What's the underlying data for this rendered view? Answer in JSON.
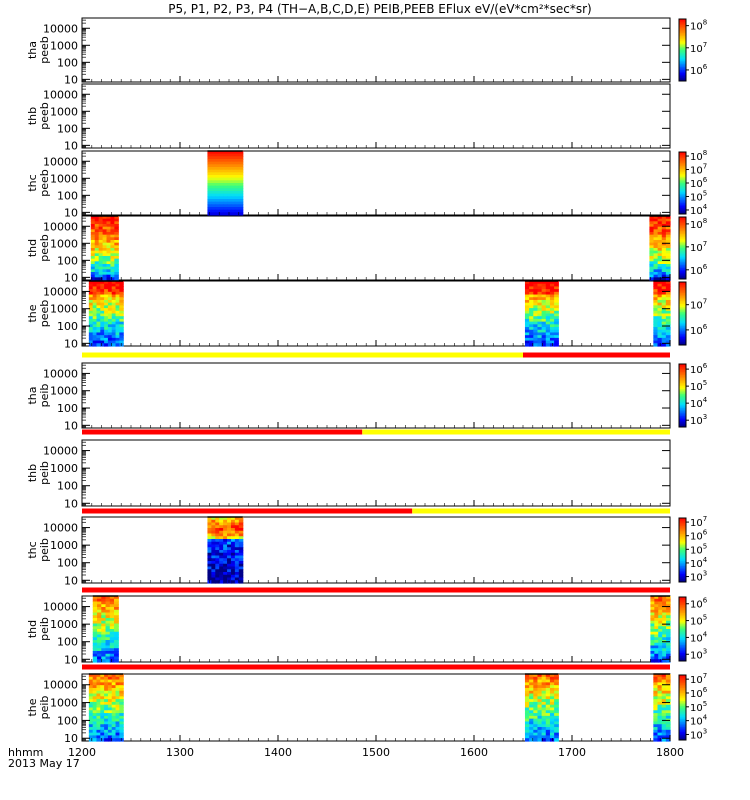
{
  "chart_data": {
    "type": "heatmap",
    "title": "P5, P1, P2, P3, P4 (TH−A,B,C,D,E) PEIB,PEEB EFlux eV/(eV*cm²*sec*sr)",
    "x_axis": {
      "range": [
        1200,
        1800
      ],
      "ticks": [
        "1200",
        "1300",
        "1400",
        "1500",
        "1600",
        "1700",
        "1800"
      ],
      "label_left": "hhmm",
      "date": "2013 May 17"
    },
    "y_axis": {
      "scale": "log",
      "range": [
        7,
        40000
      ],
      "ticks": [
        "10",
        "100",
        "1000",
        "10000"
      ]
    },
    "panels": [
      {
        "id": "tha-peeb",
        "label_line1": "tha",
        "label_line2": "peeb",
        "segments": [],
        "colorbar": {
          "ticks": [
            {
              "base": "10",
              "exp": "8",
              "v": 8
            },
            {
              "base": "10",
              "exp": "7",
              "v": 7
            },
            {
              "base": "10",
              "exp": "6",
              "v": 6
            }
          ],
          "range": [
            5.5,
            8.3
          ]
        }
      },
      {
        "id": "thb-peeb",
        "label_line1": "thb",
        "label_line2": "peeb",
        "segments": []
      },
      {
        "id": "thc-peeb",
        "label_line1": "thc",
        "label_line2": "peeb",
        "segments": [
          {
            "t0": 1328,
            "t1": 1364,
            "pattern": "thc-ele"
          }
        ],
        "colorbar": {
          "ticks": [
            {
              "base": "10",
              "exp": "8",
              "v": 8
            },
            {
              "base": "10",
              "exp": "7",
              "v": 7
            },
            {
              "base": "10",
              "exp": "6",
              "v": 6
            },
            {
              "base": "10",
              "exp": "5",
              "v": 5
            },
            {
              "base": "10",
              "exp": "4",
              "v": 4
            }
          ],
          "range": [
            3.7,
            8.3
          ]
        }
      },
      {
        "id": "thd-peeb",
        "label_line1": "thd",
        "label_line2": "peeb",
        "segments": [
          {
            "t0": 1209,
            "t1": 1237,
            "pattern": "ele-hot"
          },
          {
            "t0": 1779,
            "t1": 1800,
            "pattern": "ele-hot"
          }
        ],
        "colorbar": {
          "ticks": [
            {
              "base": "10",
              "exp": "8",
              "v": 8
            },
            {
              "base": "10",
              "exp": "7",
              "v": 7
            },
            {
              "base": "10",
              "exp": "6",
              "v": 6
            }
          ],
          "range": [
            5.6,
            8.3
          ]
        }
      },
      {
        "id": "the-peeb",
        "label_line1": "the",
        "label_line2": "peeb",
        "segments": [
          {
            "t0": 1207,
            "t1": 1242,
            "pattern": "ele-mix"
          },
          {
            "t0": 1652,
            "t1": 1686,
            "pattern": "ele-mix"
          },
          {
            "t0": 1783,
            "t1": 1800,
            "pattern": "ele-mix"
          }
        ],
        "colorbar": {
          "ticks": [
            {
              "base": "10",
              "exp": "7",
              "v": 7
            },
            {
              "base": "10",
              "exp": "6",
              "v": 6
            }
          ],
          "range": [
            5.4,
            7.9
          ]
        }
      },
      {
        "id": "tha-peib",
        "label_line1": "tha",
        "label_line2": "peib",
        "mode_bar": [
          {
            "t0": 1200,
            "t1": 1650,
            "color": "#ffff00"
          },
          {
            "t0": 1650,
            "t1": 1800,
            "color": "#ff0000"
          }
        ],
        "segments": [],
        "colorbar": {
          "ticks": [
            {
              "base": "10",
              "exp": "6",
              "v": 6
            },
            {
              "base": "10",
              "exp": "5",
              "v": 5
            },
            {
              "base": "10",
              "exp": "4",
              "v": 4
            },
            {
              "base": "10",
              "exp": "3",
              "v": 3
            }
          ],
          "range": [
            2.6,
            6.3
          ]
        }
      },
      {
        "id": "thb-peib",
        "label_line1": "thb",
        "label_line2": "peib",
        "mode_bar": [
          {
            "t0": 1200,
            "t1": 1486,
            "color": "#ff0000"
          },
          {
            "t0": 1486,
            "t1": 1800,
            "color": "#ffff00"
          }
        ],
        "segments": []
      },
      {
        "id": "thc-peib",
        "label_line1": "thc",
        "label_line2": "peib",
        "mode_bar": [
          {
            "t0": 1200,
            "t1": 1537,
            "color": "#ff0000"
          },
          {
            "t0": 1537,
            "t1": 1800,
            "color": "#ffff00"
          }
        ],
        "segments": [
          {
            "t0": 1328,
            "t1": 1364,
            "pattern": "ion-thc"
          }
        ],
        "colorbar": {
          "ticks": [
            {
              "base": "10",
              "exp": "7",
              "v": 7
            },
            {
              "base": "10",
              "exp": "6",
              "v": 6
            },
            {
              "base": "10",
              "exp": "5",
              "v": 5
            },
            {
              "base": "10",
              "exp": "4",
              "v": 4
            },
            {
              "base": "10",
              "exp": "3",
              "v": 3
            }
          ],
          "range": [
            2.6,
            7.3
          ]
        }
      },
      {
        "id": "thd-peib",
        "label_line1": "thd",
        "label_line2": "peib",
        "mode_bar": [
          {
            "t0": 1200,
            "t1": 1800,
            "color": "#ff0000"
          }
        ],
        "segments": [
          {
            "t0": 1211,
            "t1": 1237,
            "pattern": "ion"
          },
          {
            "t0": 1780,
            "t1": 1800,
            "pattern": "ion"
          }
        ],
        "colorbar": {
          "ticks": [
            {
              "base": "10",
              "exp": "6",
              "v": 6
            },
            {
              "base": "10",
              "exp": "5",
              "v": 5
            },
            {
              "base": "10",
              "exp": "4",
              "v": 4
            },
            {
              "base": "10",
              "exp": "3",
              "v": 3
            }
          ],
          "range": [
            2.6,
            6.4
          ]
        }
      },
      {
        "id": "the-peib",
        "label_line1": "the",
        "label_line2": "peib",
        "mode_bar": [
          {
            "t0": 1200,
            "t1": 1800,
            "color": "#ff0000"
          }
        ],
        "segments": [
          {
            "t0": 1207,
            "t1": 1242,
            "pattern": "ion"
          },
          {
            "t0": 1652,
            "t1": 1686,
            "pattern": "ion"
          },
          {
            "t0": 1783,
            "t1": 1800,
            "pattern": "ion"
          }
        ],
        "colorbar": {
          "ticks": [
            {
              "base": "10",
              "exp": "7",
              "v": 7
            },
            {
              "base": "10",
              "exp": "6",
              "v": 6
            },
            {
              "base": "10",
              "exp": "5",
              "v": 5
            },
            {
              "base": "10",
              "exp": "4",
              "v": 4
            },
            {
              "base": "10",
              "exp": "3",
              "v": 3
            }
          ],
          "range": [
            2.6,
            7.3
          ]
        }
      }
    ]
  }
}
